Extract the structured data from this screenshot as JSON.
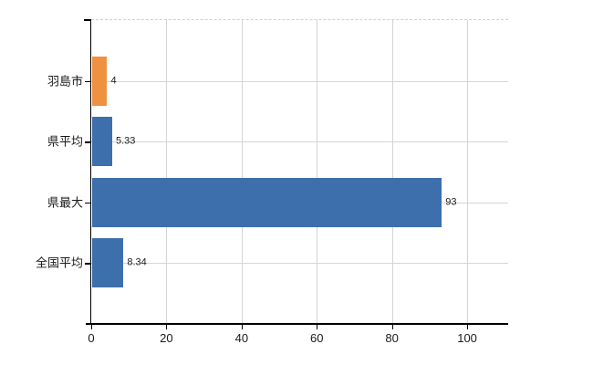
{
  "chart_data": {
    "type": "bar",
    "orientation": "horizontal",
    "title": "",
    "xlabel": "",
    "ylabel": "",
    "categories": [
      "羽島市",
      "県平均",
      "県最大",
      "全国平均"
    ],
    "values": [
      4,
      5.33,
      93,
      8.34
    ],
    "value_labels": [
      "4",
      "5.33",
      "93",
      "8.34"
    ],
    "bar_colors": [
      "#ee9140",
      "#3d6fac",
      "#3d6fac",
      "#3d6fac"
    ],
    "x_ticks": [
      0,
      20,
      40,
      60,
      80,
      100
    ],
    "x_tick_labels": [
      "0",
      "20",
      "40",
      "60",
      "80",
      "100"
    ],
    "xlim": [
      0,
      110.9
    ],
    "grid": true,
    "legend": null,
    "colors": {
      "highlight_bar": "#ee9140",
      "default_bar": "#3d6fac",
      "gridline": "#d2d7d2",
      "top_border": "#d0d0d0",
      "axis": "#000000",
      "tick_label": "#1a1a1a",
      "value_label": "#1a1a1a",
      "category_label": "#1a1a1a",
      "background": "#ffffff"
    }
  }
}
